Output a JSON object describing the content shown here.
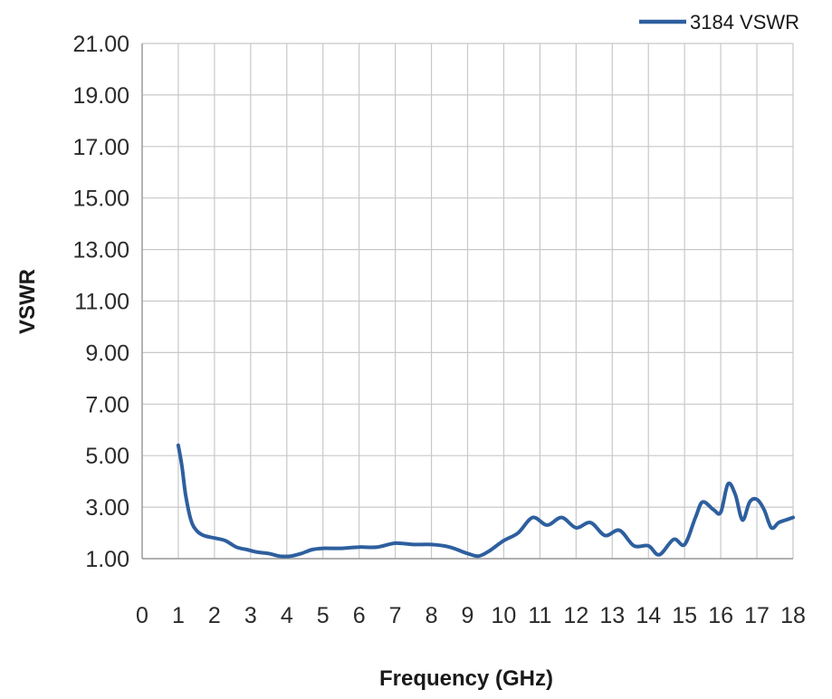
{
  "chart_data": {
    "type": "line",
    "title": "",
    "xlabel": "Frequency (GHz)",
    "ylabel": "VSWR",
    "xlim": [
      0,
      18
    ],
    "ylim": [
      1,
      21
    ],
    "x_ticks": [
      0,
      1,
      2,
      3,
      4,
      5,
      6,
      7,
      8,
      9,
      10,
      11,
      12,
      13,
      14,
      15,
      16,
      17,
      18
    ],
    "x_tick_labels": [
      "0",
      "1",
      "2",
      "3",
      "4",
      "5",
      "6",
      "7",
      "8",
      "9",
      "10",
      "11",
      "12",
      "13",
      "14",
      "15",
      "16",
      "17",
      "18"
    ],
    "y_ticks": [
      1,
      3,
      5,
      7,
      9,
      11,
      13,
      15,
      17,
      19,
      21
    ],
    "y_tick_labels": [
      "1.00",
      "3.00",
      "5.00",
      "7.00",
      "9.00",
      "11.00",
      "13.00",
      "15.00",
      "17.00",
      "19.00",
      "21.00"
    ],
    "grid": true,
    "legend_position": "top-right",
    "series": [
      {
        "name": "3184 VSWR",
        "color": "#2e5f9e",
        "x": [
          1.0,
          1.1,
          1.2,
          1.35,
          1.5,
          1.7,
          2.0,
          2.3,
          2.6,
          2.9,
          3.2,
          3.5,
          3.8,
          4.1,
          4.4,
          4.7,
          5.0,
          5.5,
          6.0,
          6.5,
          7.0,
          7.5,
          8.0,
          8.5,
          9.0,
          9.3,
          9.6,
          10.0,
          10.4,
          10.8,
          11.2,
          11.6,
          12.0,
          12.4,
          12.8,
          13.2,
          13.6,
          14.0,
          14.3,
          14.7,
          15.0,
          15.3,
          15.5,
          15.8,
          16.0,
          16.2,
          16.4,
          16.6,
          16.8,
          17.0,
          17.2,
          17.4,
          17.6,
          17.8,
          18.0
        ],
        "y": [
          5.4,
          4.6,
          3.5,
          2.5,
          2.1,
          1.9,
          1.8,
          1.7,
          1.45,
          1.35,
          1.25,
          1.2,
          1.1,
          1.1,
          1.2,
          1.35,
          1.4,
          1.4,
          1.45,
          1.45,
          1.6,
          1.55,
          1.55,
          1.45,
          1.2,
          1.1,
          1.3,
          1.7,
          2.0,
          2.6,
          2.3,
          2.6,
          2.2,
          2.4,
          1.9,
          2.1,
          1.5,
          1.5,
          1.15,
          1.75,
          1.55,
          2.6,
          3.2,
          2.9,
          2.8,
          3.9,
          3.5,
          2.5,
          3.2,
          3.3,
          2.9,
          2.2,
          2.4,
          2.5,
          2.6
        ]
      }
    ]
  }
}
